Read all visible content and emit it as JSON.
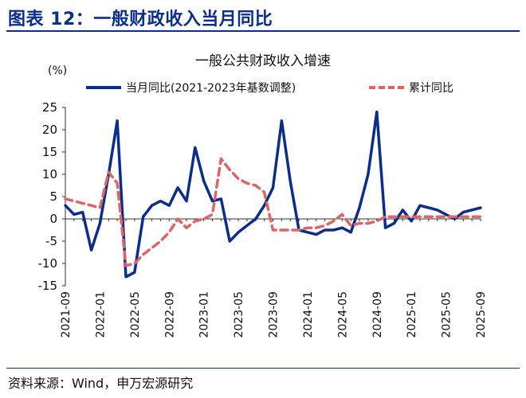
{
  "header": {
    "title": "图表 12：一般财政收入当月同比"
  },
  "source": "资料来源：Wind，申万宏源研究",
  "chart_data": {
    "type": "line",
    "title": "一般公共财政收入增速",
    "unit_label": "(%)",
    "ylim": [
      -15,
      25
    ],
    "yticks": [
      -15,
      -10,
      -5,
      0,
      5,
      10,
      15,
      20,
      25
    ],
    "grid": false,
    "legend_position": "top",
    "x_tick_labels": [
      "2021-09",
      "2022-01",
      "2022-05",
      "2022-09",
      "2023-01",
      "2023-05",
      "2023-09",
      "2024-01",
      "2024-05",
      "2024-09",
      "2025-01",
      "2025-05",
      "2025-09"
    ],
    "x": [
      "2021-09",
      "2021-10",
      "2021-11",
      "2021-12",
      "2022-01",
      "2022-02",
      "2022-03",
      "2022-04",
      "2022-05",
      "2022-06",
      "2022-07",
      "2022-08",
      "2022-09",
      "2022-10",
      "2022-11",
      "2022-12",
      "2023-01",
      "2023-02",
      "2023-03",
      "2023-04",
      "2023-05",
      "2023-06",
      "2023-07",
      "2023-08",
      "2023-09",
      "2023-10",
      "2023-11",
      "2023-12",
      "2024-01",
      "2024-02",
      "2024-03",
      "2024-04",
      "2024-05",
      "2024-06",
      "2024-07",
      "2024-08",
      "2024-09",
      "2024-10",
      "2024-11",
      "2024-12",
      "2025-01",
      "2025-02",
      "2025-03",
      "2025-04",
      "2025-05",
      "2025-06",
      "2025-07",
      "2025-08",
      "2025-09"
    ],
    "series": [
      {
        "name": "当月同比(2021-2023年基数调整)",
        "color": "#0b2e8a",
        "style": "solid",
        "values": [
          3,
          1,
          1.5,
          -7,
          -1,
          10,
          22,
          -13,
          -12,
          0.5,
          3,
          4,
          3,
          7,
          4,
          16,
          8.5,
          4,
          4.5,
          -5,
          -3,
          -1.5,
          0,
          3,
          7,
          22,
          8.5,
          -2.5,
          -3,
          -3.5,
          -2.5,
          -2.5,
          -2,
          -3,
          2.5,
          10,
          24,
          -2,
          -1,
          2,
          -0.5,
          3,
          2.5,
          2,
          1,
          0,
          1.5,
          2,
          2.5
        ]
      },
      {
        "name": "累计同比",
        "color": "#e06466",
        "style": "dashed",
        "values": [
          4.5,
          4,
          3.5,
          3,
          2.5,
          10.5,
          8,
          -10.5,
          -10,
          -8,
          -6.5,
          -5,
          -3,
          0,
          -2,
          -0.5,
          0,
          1,
          13.5,
          11,
          9,
          8,
          7.5,
          6,
          -2.5,
          -2.5,
          -2.5,
          -2.5,
          -2,
          -2,
          -1.5,
          -0.5,
          1,
          -1.5,
          -1,
          -1,
          -0.5,
          0.5,
          0.5,
          0.5,
          0.5,
          0.5,
          0.5,
          0.5,
          0.5,
          0.5,
          0.5,
          0.5,
          0.5
        ]
      }
    ]
  }
}
